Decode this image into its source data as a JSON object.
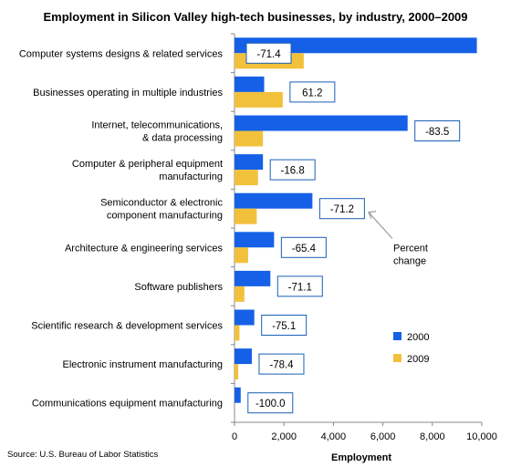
{
  "chart_data": {
    "type": "bar",
    "orientation": "horizontal",
    "title": "Employment in Silicon Valley high-tech businesses, by industry, 2000–2009",
    "xlabel": "Employment",
    "ylabel": "",
    "xlim": [
      0,
      10000
    ],
    "xticks": [
      "0",
      "2,000",
      "4,000",
      "6,000",
      "8,000",
      "10,000"
    ],
    "categories": [
      [
        "Computer systems designs & related services"
      ],
      [
        "Businesses operating in multiple industries"
      ],
      [
        "Internet, telecommunications,",
        "& data processing"
      ],
      [
        "Computer  & peripheral equipment",
        "manufacturing"
      ],
      [
        "Semiconductor & electronic",
        "component manufacturing"
      ],
      [
        "Architecture & engineering services"
      ],
      [
        "Software publishers"
      ],
      [
        "Scientific research & development services"
      ],
      [
        "Electronic instrument manufacturing"
      ],
      [
        "Communications equipment manufacturing"
      ]
    ],
    "series": [
      {
        "name": "2000",
        "color": "#1560e6",
        "values": [
          9800,
          1200,
          7000,
          1150,
          3150,
          1600,
          1450,
          800,
          700,
          250
        ]
      },
      {
        "name": "2009",
        "color": "#f2c13c",
        "values": [
          2800,
          1950,
          1150,
          950,
          900,
          550,
          400,
          200,
          150,
          0
        ]
      }
    ],
    "data_labels": [
      "-71.4",
      "61.2",
      "-83.5",
      "-16.8",
      "-71.2",
      "-65.4",
      "-71.1",
      "-75.1",
      "-78.4",
      "-100.0"
    ],
    "annotation": [
      "Percent",
      "change"
    ],
    "legend_position": "right",
    "grid": false,
    "source": "Source: U.S. Bureau of Labor Statistics"
  }
}
